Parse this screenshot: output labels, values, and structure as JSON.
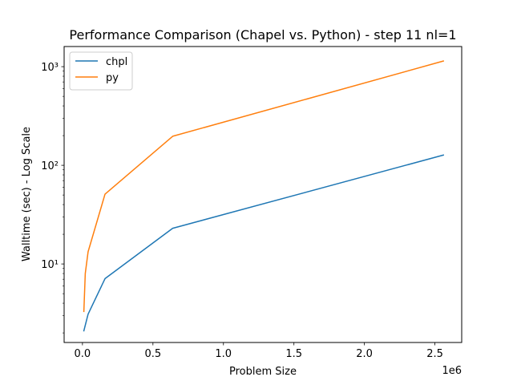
{
  "chart_data": {
    "type": "line",
    "title": "Performance Comparison (Chapel vs. Python) - step 11 nl=1",
    "xlabel": "Problem Size",
    "ylabel": "Walltime (sec) - Log Scale",
    "x_offset_text": "1e6",
    "xscale": "linear",
    "yscale": "log",
    "xlim": [
      -130000,
      2690000
    ],
    "ylim": [
      1.6,
      1600
    ],
    "x_ticks": [
      0,
      500000,
      1000000,
      1500000,
      2000000,
      2500000
    ],
    "x_tick_labels": [
      "0.0",
      "0.5",
      "1.0",
      "1.5",
      "2.0",
      "2.5"
    ],
    "y_ticks": [
      10,
      100,
      1000
    ],
    "y_tick_labels": [
      "10¹",
      "10²",
      "10³"
    ],
    "grid": false,
    "legend_position": "upper-left",
    "series": [
      {
        "name": "chpl",
        "color": "#1f77b4",
        "x": [
          10000,
          40000,
          160000,
          640000,
          2560000
        ],
        "y": [
          2.1,
          3.1,
          7.1,
          23,
          127
        ]
      },
      {
        "name": "py",
        "color": "#ff7f0e",
        "x": [
          10000,
          20000,
          40000,
          160000,
          640000,
          2560000
        ],
        "y": [
          3.3,
          8.0,
          13.3,
          51,
          197,
          1140
        ]
      }
    ]
  }
}
